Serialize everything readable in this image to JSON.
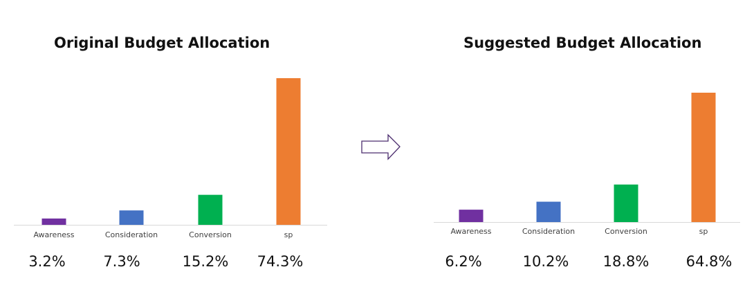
{
  "chart_data": [
    {
      "type": "bar",
      "title": "Original Budget Allocation",
      "categories": [
        "Awareness",
        "Consideration",
        "Conversion",
        "sp"
      ],
      "values": [
        3.2,
        7.3,
        15.2,
        74.3
      ],
      "value_labels": [
        "3.2%",
        "7.3%",
        "15.2%",
        "74.3%"
      ],
      "unit": "%",
      "colors": [
        "#7030A0",
        "#4472C4",
        "#00B050",
        "#ED7D31"
      ],
      "grid": false,
      "legend": "none"
    },
    {
      "type": "bar",
      "title": "Suggested Budget Allocation",
      "categories": [
        "Awareness",
        "Consideration",
        "Conversion",
        "sp"
      ],
      "values": [
        6.2,
        10.2,
        18.8,
        64.8
      ],
      "value_labels": [
        "6.2%",
        "10.2%",
        "18.8%",
        "64.8%"
      ],
      "unit": "%",
      "colors": [
        "#7030A0",
        "#4472C4",
        "#00B050",
        "#ED7D31"
      ],
      "grid": false,
      "legend": "none"
    }
  ],
  "arrow": {
    "icon": "right-arrow-icon",
    "stroke": "#4B2C6E"
  }
}
